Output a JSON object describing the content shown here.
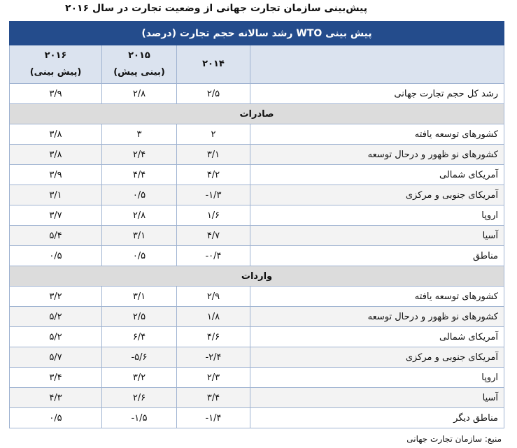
{
  "title": "پیش‌بینی سازمان تجارت جهانی از وضعیت تجارت در سال ۲۰۱۶",
  "table": {
    "title": "پیش بینی WTO رشد سالانه حجم تجارت (درصد)",
    "columns": [
      {
        "year": "۲۰۱۴"
      },
      {
        "year": "۲۰۱۵",
        "note": "(بینی پیش)"
      },
      {
        "year": "۲۰۱۶",
        "note": "(پیش بینی)"
      }
    ],
    "rows": [
      {
        "label": "رشد کل حجم تجارت جهانی",
        "values": [
          "۲/۵",
          "۲/۸",
          "۳/۹"
        ]
      },
      {
        "section": "صادرات"
      },
      {
        "label": "کشورهای توسعه یافته",
        "values": [
          "۲",
          "۳",
          "۳/۸"
        ]
      },
      {
        "label": "کشورهای نو ظهور و درحال توسعه",
        "values": [
          "۳/۱",
          "۲/۴",
          "۳/۸"
        ]
      },
      {
        "label": "آمریکای شمالی",
        "values": [
          "۴/۲",
          "۴/۴",
          "۳/۹"
        ]
      },
      {
        "label": "آمریکای جنوبی و مرکزی",
        "values": [
          "-۱/۳",
          "۰/۵",
          "۳/۱"
        ]
      },
      {
        "label": "اروپا",
        "values": [
          "۱/۶",
          "۲/۸",
          "۳/۷"
        ]
      },
      {
        "label": "آسیا",
        "values": [
          "۴/۷",
          "۳/۱",
          "۵/۴"
        ]
      },
      {
        "label": "مناطق",
        "values": [
          "-۰/۴",
          "۰/۵",
          "۰/۵"
        ]
      },
      {
        "section": "واردات"
      },
      {
        "label": "کشورهای توسعه یافته",
        "values": [
          "۲/۹",
          "۳/۱",
          "۳/۲"
        ]
      },
      {
        "label": "کشورهای نو ظهور و درحال توسعه",
        "values": [
          "۱/۸",
          "۲/۵",
          "۵/۲"
        ]
      },
      {
        "label": "آمریکای شمالی",
        "values": [
          "۴/۶",
          "۶/۴",
          "۵/۲"
        ]
      },
      {
        "label": "آمریکای جنوبی و مرکزی",
        "values": [
          "-۲/۴",
          "-۵/۶",
          "۵/۷"
        ]
      },
      {
        "label": "اروپا",
        "values": [
          "۲/۳",
          "۳/۲",
          "۳/۴"
        ]
      },
      {
        "label": "آسیا",
        "values": [
          "۳/۴",
          "۲/۶",
          "۴/۳"
        ]
      },
      {
        "label": "مناطق دیگر",
        "values": [
          "-۱/۴",
          "-۱/۵",
          "۰/۵"
        ]
      }
    ]
  },
  "source": "منبع: سازمان تجارت جهانی"
}
